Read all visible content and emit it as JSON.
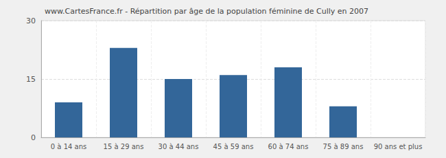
{
  "chart_data": {
    "type": "bar",
    "title": "www.CartesFrance.fr - Répartition par âge de la population féminine de Cully en 2007",
    "categories": [
      "0 à 14 ans",
      "15 à 29 ans",
      "30 à 44 ans",
      "45 à 59 ans",
      "60 à 74 ans",
      "75 à 89 ans",
      "90 ans et plus"
    ],
    "values": [
      9,
      23,
      15,
      16,
      18,
      8,
      0
    ],
    "color": "#336699",
    "ylim": [
      0,
      30
    ],
    "yticks": [
      0,
      15,
      30
    ],
    "grid": true
  }
}
